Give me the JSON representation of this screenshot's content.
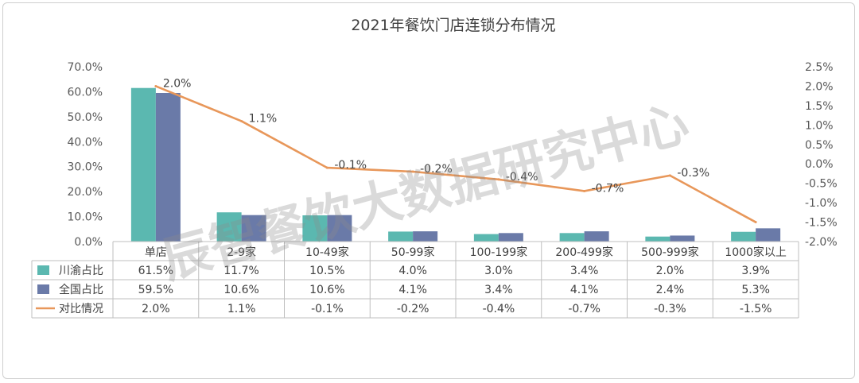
{
  "chart_data": {
    "type": "bar",
    "title": "2021年餐饮门店连锁分布情况",
    "categories": [
      "单店",
      "2-9家",
      "10-49家",
      "50-99家",
      "100-199家",
      "200-499家",
      "500-999家",
      "1000家以上"
    ],
    "series": [
      {
        "name": "川渝占比",
        "type": "bar",
        "axis": "left",
        "color": "#5bb8b0",
        "values": [
          61.5,
          11.7,
          10.5,
          4.0,
          3.0,
          3.4,
          2.0,
          3.9
        ],
        "labels": [
          "61.5%",
          "11.7%",
          "10.5%",
          "4.0%",
          "3.0%",
          "3.4%",
          "2.0%",
          "3.9%"
        ]
      },
      {
        "name": "全国占比",
        "type": "bar",
        "axis": "left",
        "color": "#6a7aa8",
        "values": [
          59.5,
          10.6,
          10.6,
          4.1,
          3.4,
          4.1,
          2.4,
          5.3
        ],
        "labels": [
          "59.5%",
          "10.6%",
          "10.6%",
          "4.1%",
          "3.4%",
          "4.1%",
          "2.4%",
          "5.3%"
        ]
      },
      {
        "name": "对比情况",
        "type": "line",
        "axis": "right",
        "color": "#e8975a",
        "values": [
          2.0,
          1.1,
          -0.1,
          -0.2,
          -0.4,
          -0.7,
          -0.3,
          -1.5
        ],
        "labels": [
          "2.0%",
          "1.1%",
          "-0.1%",
          "-0.2%",
          "-0.4%",
          "-0.7%",
          "-0.3%",
          "-1.5%"
        ],
        "point_labels": [
          "2.0%",
          "1.1%",
          "-0.1%",
          "-0.2%",
          "-0.4%",
          "-0.7%",
          "-0.3%",
          ""
        ]
      }
    ],
    "y_left": {
      "min": 0,
      "max": 70,
      "step": 10,
      "tick_labels": [
        "0.0%",
        "10.0%",
        "20.0%",
        "30.0%",
        "40.0%",
        "50.0%",
        "60.0%",
        "70.0%"
      ]
    },
    "y_right": {
      "min": -2.0,
      "max": 2.5,
      "step": 0.5,
      "tick_labels": [
        "-2.0%",
        "-1.5%",
        "-1.0%",
        "-0.5%",
        "0.0%",
        "0.5%",
        "1.0%",
        "1.5%",
        "2.0%",
        "2.5%"
      ]
    },
    "grid": false,
    "legend": "data-table"
  },
  "watermark": "辰智餐饮大数据研究中心"
}
